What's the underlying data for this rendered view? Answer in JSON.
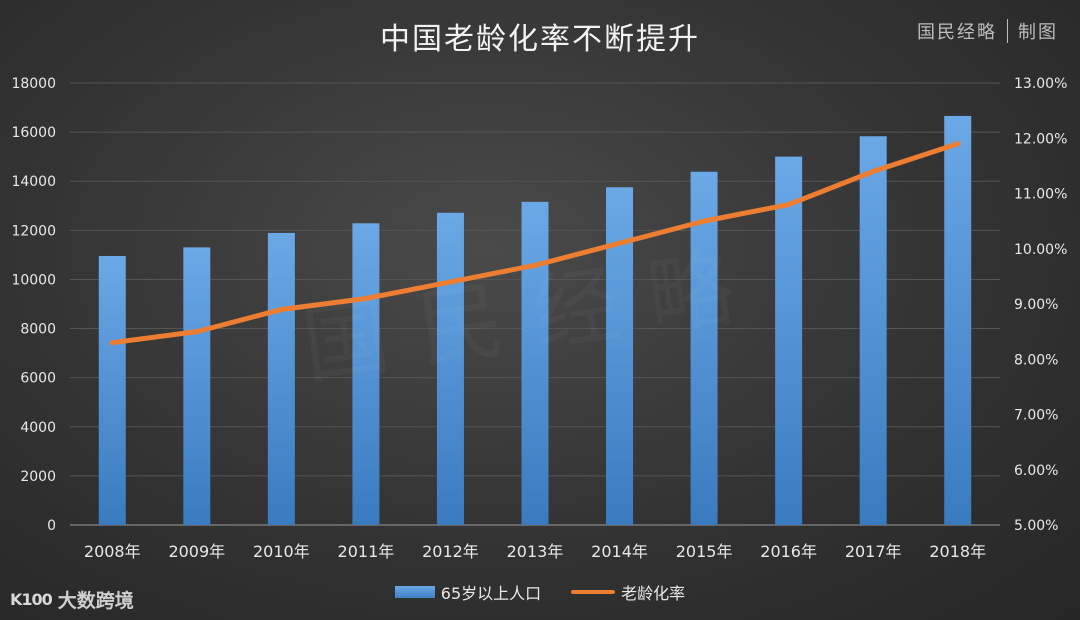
{
  "header": {
    "title": "中国老龄化率不断提升",
    "credit_source": "国民经略",
    "credit_action": "制图"
  },
  "watermark": "国民经略",
  "logo": {
    "mark": "K100",
    "text": "大数跨境"
  },
  "colors": {
    "bar": "#5b9bd5",
    "line": "#ed7d31",
    "text": "#e8e8e8",
    "grid": "#555555"
  },
  "chart_data": {
    "type": "bar",
    "categories": [
      "2008年",
      "2009年",
      "2010年",
      "2011年",
      "2012年",
      "2013年",
      "2014年",
      "2015年",
      "2016年",
      "2017年",
      "2018年"
    ],
    "series": [
      {
        "name": "65岁以上人口",
        "kind": "bar",
        "axis": "left",
        "values": [
          10956,
          11307,
          11894,
          12288,
          12714,
          13161,
          13755,
          14386,
          15003,
          15831,
          16658
        ]
      },
      {
        "name": "老龄化率",
        "kind": "line",
        "axis": "right",
        "values": [
          8.3,
          8.5,
          8.9,
          9.1,
          9.4,
          9.7,
          10.1,
          10.5,
          10.8,
          11.4,
          11.9
        ]
      }
    ],
    "ylim_left": [
      0,
      18000
    ],
    "yticks_left": [
      "0",
      "2000",
      "4000",
      "6000",
      "8000",
      "10000",
      "12000",
      "14000",
      "16000",
      "18000"
    ],
    "ylim_right": [
      5,
      13
    ],
    "yticks_right": [
      "5.00%",
      "6.00%",
      "7.00%",
      "8.00%",
      "9.00%",
      "10.00%",
      "11.00%",
      "12.00%",
      "13.00%"
    ],
    "legend_position": "bottom",
    "grid": true
  }
}
